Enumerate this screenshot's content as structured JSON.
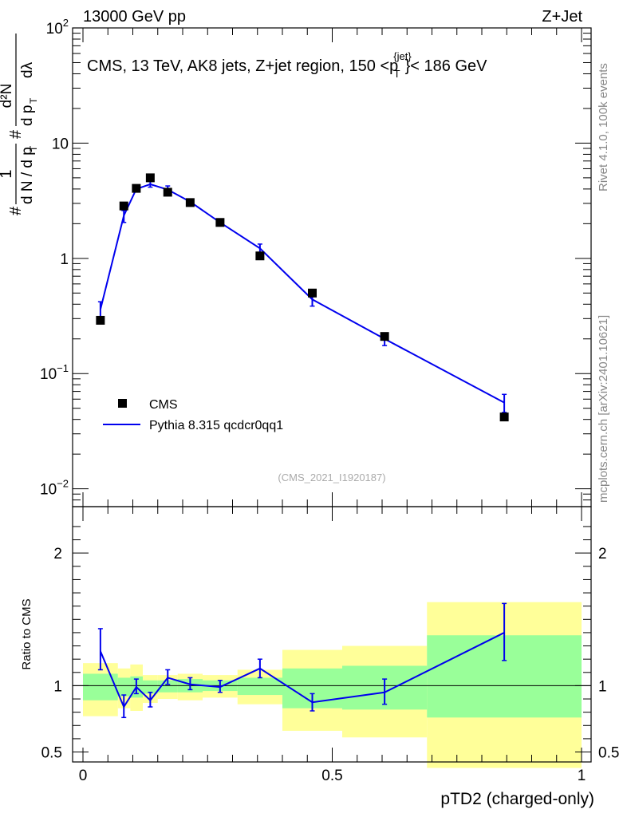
{
  "header": {
    "left": "13000 GeV pp",
    "right": "Z+Jet"
  },
  "side_label": {
    "rivet": "Rivet 4.1.0,  100k events",
    "site": "mcplots.cern.ch [arXiv:2401.10621]"
  },
  "chart_data": [
    {
      "type": "scatter",
      "panel": "main",
      "title": "CMS, 13 TeV, AK8 jets, Z+jet region, 150 <",
      "title_sup": "{jet}",
      "title_p": "p",
      "title_sub": "T",
      "title_end": "}< 186 GeV",
      "watermark": "(CMS_2021_I1920187)",
      "ylabel": {
        "hash": "#",
        "one": "1",
        "dn": "d N / d p",
        "t": "T",
        "hash2": "#",
        "num": "d²N",
        "den": "d p",
        "dlambda": "dλ"
      },
      "yscale": "log",
      "ylim": [
        0.007,
        100
      ],
      "xlim": [
        0,
        1
      ],
      "yticks": [
        {
          "v": 100,
          "base": "10",
          "exp": "2"
        },
        {
          "v": 10,
          "base": "10",
          "exp": ""
        },
        {
          "v": 1,
          "base": "1",
          "exp": ""
        },
        {
          "v": 0.1,
          "base": "10",
          "exp": "−1"
        },
        {
          "v": 0.01,
          "base": "10",
          "exp": "−2"
        }
      ],
      "legend": {
        "position": "lower-left",
        "data_label": "CMS",
        "mc_label": "Pythia 8.315 qcdcr0qq1"
      },
      "series": [
        {
          "name": "CMS",
          "x": [
            0.035,
            0.082,
            0.107,
            0.135,
            0.17,
            0.215,
            0.275,
            0.355,
            0.46,
            0.605,
            0.845
          ],
          "values": [
            0.29,
            2.85,
            4.05,
            5.0,
            3.75,
            3.05,
            2.05,
            1.05,
            0.5,
            0.21,
            0.042
          ]
        },
        {
          "name": "Pythia 8.315 qcdcr0qq1",
          "x": [
            0.035,
            0.082,
            0.107,
            0.135,
            0.17,
            0.215,
            0.275,
            0.355,
            0.46,
            0.605,
            0.845
          ],
          "values": [
            0.36,
            2.35,
            4.0,
            4.4,
            3.95,
            3.1,
            2.05,
            1.22,
            0.44,
            0.2,
            0.056
          ],
          "err_lo": [
            0.29,
            2.05,
            3.8,
            4.15,
            3.65,
            2.95,
            1.97,
            1.12,
            0.385,
            0.175,
            0.046
          ],
          "err_hi": [
            0.42,
            2.6,
            4.2,
            4.65,
            4.25,
            3.25,
            2.13,
            1.33,
            0.49,
            0.225,
            0.066
          ]
        }
      ]
    },
    {
      "type": "line",
      "panel": "ratio",
      "ylabel": "Ratio to CMS",
      "xlabel": "pTD2 (charged-only)",
      "ylim": [
        0.425,
        2.35
      ],
      "xlim": [
        0,
        1
      ],
      "yticks": [
        0.5,
        1,
        2
      ],
      "ytick_labels": [
        "0.5",
        "1",
        "2"
      ],
      "xticks": [
        0,
        0.5,
        1
      ],
      "xtick_labels": [
        "0",
        "0.5",
        "1"
      ],
      "bands": [
        {
          "x0": 0.0,
          "x1": 0.07,
          "y_lo": 0.77,
          "y_hi": 1.17,
          "g_lo": 0.89,
          "g_hi": 1.09
        },
        {
          "x0": 0.07,
          "x1": 0.095,
          "y_lo": 0.83,
          "y_hi": 1.13,
          "g_lo": 0.92,
          "g_hi": 1.06
        },
        {
          "x0": 0.095,
          "x1": 0.12,
          "y_lo": 0.81,
          "y_hi": 1.16,
          "g_lo": 0.91,
          "g_hi": 1.07
        },
        {
          "x0": 0.12,
          "x1": 0.15,
          "y_lo": 0.87,
          "y_hi": 1.08,
          "g_lo": 0.94,
          "g_hi": 1.04
        },
        {
          "x0": 0.15,
          "x1": 0.19,
          "y_lo": 0.9,
          "y_hi": 1.08,
          "g_lo": 0.95,
          "g_hi": 1.04
        },
        {
          "x0": 0.19,
          "x1": 0.24,
          "y_lo": 0.89,
          "y_hi": 1.09,
          "g_lo": 0.95,
          "g_hi": 1.05
        },
        {
          "x0": 0.24,
          "x1": 0.31,
          "y_lo": 0.91,
          "y_hi": 1.08,
          "g_lo": 0.96,
          "g_hi": 1.04
        },
        {
          "x0": 0.31,
          "x1": 0.4,
          "y_lo": 0.86,
          "y_hi": 1.12,
          "g_lo": 0.93,
          "g_hi": 1.06
        },
        {
          "x0": 0.4,
          "x1": 0.52,
          "y_lo": 0.66,
          "y_hi": 1.27,
          "g_lo": 0.83,
          "g_hi": 1.13
        },
        {
          "x0": 0.52,
          "x1": 0.69,
          "y_lo": 0.61,
          "y_hi": 1.3,
          "g_lo": 0.82,
          "g_hi": 1.15
        },
        {
          "x0": 0.69,
          "x1": 1.0,
          "y_lo": 0.38,
          "y_hi": 1.63,
          "g_lo": 0.76,
          "g_hi": 1.38
        }
      ],
      "series": [
        {
          "name": "Pythia 8.315 qcdcr0qq1 / CMS",
          "x": [
            0.035,
            0.082,
            0.107,
            0.135,
            0.17,
            0.215,
            0.275,
            0.355,
            0.46,
            0.605,
            0.845
          ],
          "values": [
            1.26,
            0.84,
            0.99,
            0.89,
            1.06,
            1.01,
            0.99,
            1.13,
            0.875,
            0.95,
            1.4
          ],
          "err_lo": [
            1.12,
            0.76,
            0.94,
            0.84,
            1.01,
            0.97,
            0.95,
            1.06,
            0.81,
            0.86,
            1.19
          ],
          "err_hi": [
            1.43,
            0.93,
            1.05,
            0.95,
            1.12,
            1.06,
            1.04,
            1.2,
            0.94,
            1.05,
            1.62
          ]
        }
      ]
    }
  ]
}
